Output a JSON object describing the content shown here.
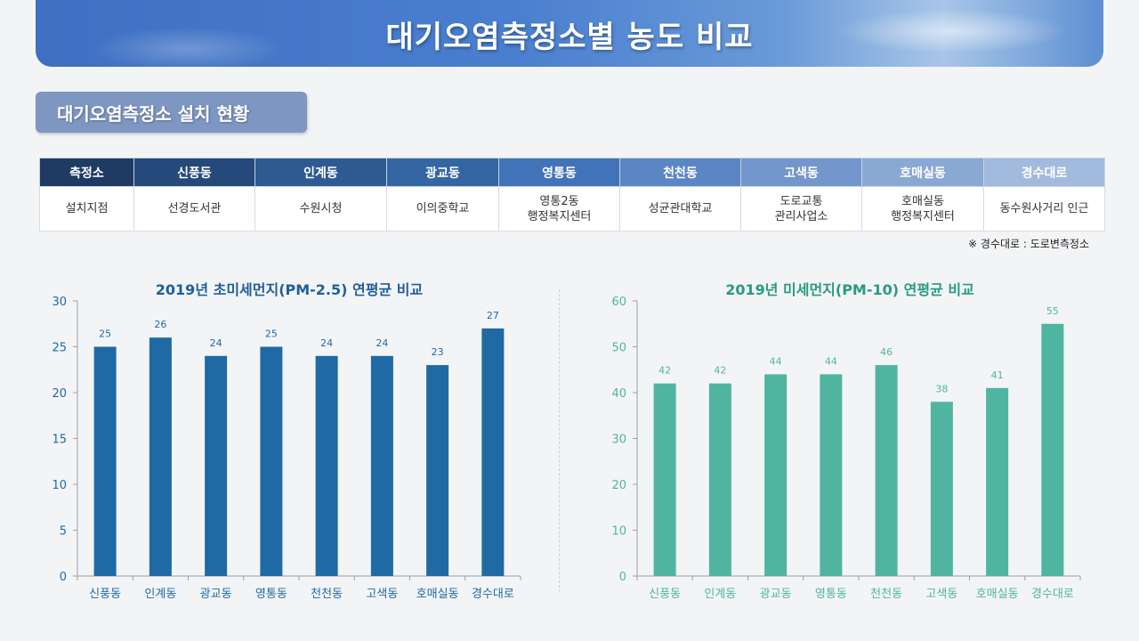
{
  "header": {
    "title": "대기오염측정소별 농도 비교"
  },
  "section": {
    "title": "대기오염측정소 설치 현황"
  },
  "table": {
    "columns": [
      "측정소",
      "신풍동",
      "인계동",
      "광교동",
      "영통동",
      "천천동",
      "고색동",
      "호매실동",
      "경수대로"
    ],
    "row_label": "설치지점",
    "cells": [
      [
        "선경도서관"
      ],
      [
        "수원시청"
      ],
      [
        "이의중학교"
      ],
      [
        "영통2동",
        "행정복지센터"
      ],
      [
        "성균관대학교"
      ],
      [
        "도로교통",
        "관리사업소"
      ],
      [
        "호매실동",
        "행정복지센터"
      ],
      [
        "동수원사거리 인근"
      ]
    ],
    "header_colors": [
      "#1f3b63",
      "#24497a",
      "#2e5a92",
      "#3566a4",
      "#4173b8",
      "#5b86c4",
      "#7396cc",
      "#8aa8d4",
      "#a2badd"
    ]
  },
  "note": "※ 경수대로 : 도로변측정소",
  "chart_data": [
    {
      "type": "bar",
      "title": "2019년 초미세먼지(PM-2.5) 연평균 비교",
      "categories": [
        "신풍동",
        "인계동",
        "광교동",
        "영통동",
        "천천동",
        "고색동",
        "호매실동",
        "경수대로"
      ],
      "values": [
        25,
        26,
        24,
        25,
        24,
        24,
        23,
        27
      ],
      "ylim": [
        0,
        30
      ],
      "yticks": [
        0,
        5,
        10,
        15,
        20,
        25,
        30
      ],
      "color": "#1f6aa5",
      "title_color": "#1f5f99"
    },
    {
      "type": "bar",
      "title": "2019년 미세먼지(PM-10) 연평균 비교",
      "categories": [
        "신풍동",
        "인계동",
        "광교동",
        "영통동",
        "천천동",
        "고색동",
        "호매실동",
        "경수대로"
      ],
      "values": [
        42,
        42,
        44,
        44,
        46,
        38,
        41,
        55
      ],
      "ylim": [
        0,
        60
      ],
      "yticks": [
        0,
        10,
        20,
        30,
        40,
        50,
        60
      ],
      "color": "#4fb5a0",
      "title_color": "#2a9a82"
    }
  ]
}
